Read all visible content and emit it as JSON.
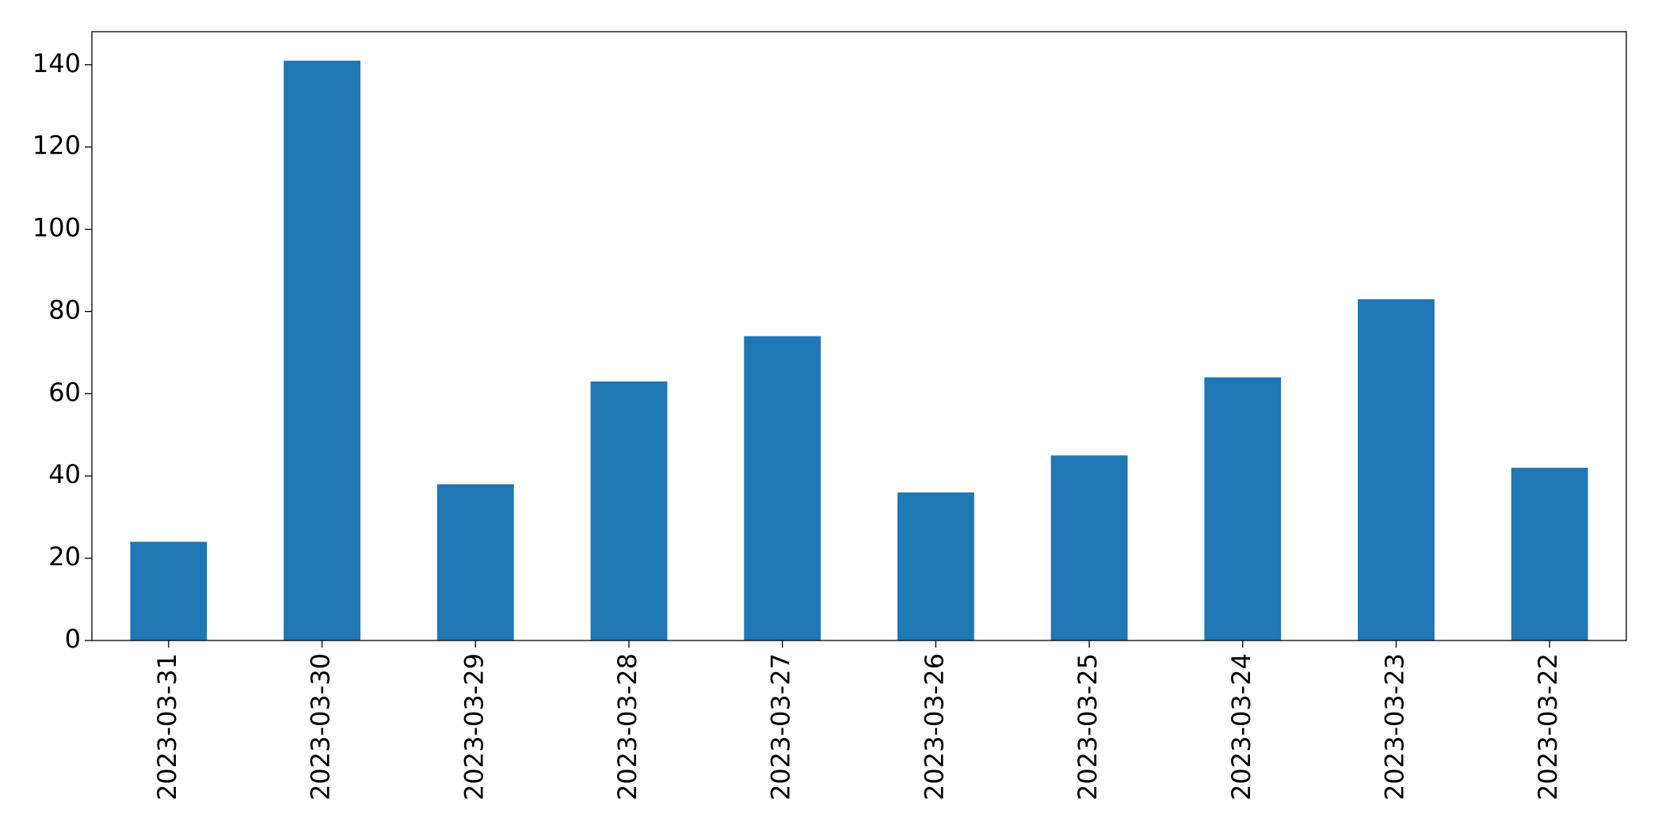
{
  "chart_data": {
    "type": "bar",
    "categories": [
      "2023-03-31",
      "2023-03-30",
      "2023-03-29",
      "2023-03-28",
      "2023-03-27",
      "2023-03-26",
      "2023-03-25",
      "2023-03-24",
      "2023-03-23",
      "2023-03-22"
    ],
    "values": [
      24,
      141,
      38,
      63,
      74,
      36,
      45,
      64,
      83,
      42
    ],
    "color": "#1f77b4",
    "ylim": [
      0,
      148.05
    ],
    "yticks": [
      0,
      20,
      40,
      60,
      80,
      100,
      120,
      140
    ],
    "grid": false
  }
}
